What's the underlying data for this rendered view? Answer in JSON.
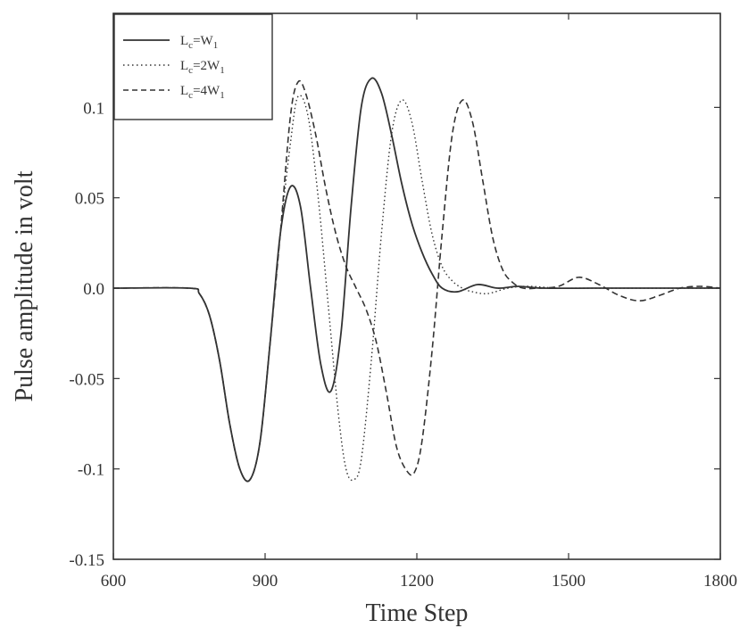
{
  "chart_data": {
    "type": "line",
    "title": "",
    "xlabel": "Time Step",
    "ylabel": "Pulse amplitude in volt",
    "xlim": [
      600,
      1800
    ],
    "ylim": [
      -0.15,
      0.15
    ],
    "x_ticks": [
      600,
      900,
      1200,
      1500,
      1800
    ],
    "x_tick_labels": [
      "600",
      "900",
      "1200",
      "1500",
      "1800"
    ],
    "y_ticks": [
      0.1,
      0.05,
      0.0,
      -0.05,
      -0.1,
      -0.15
    ],
    "y_tick_labels": [
      "0.1",
      "0.05",
      "0.0",
      "-0.05",
      "-0.1",
      "-0.15"
    ],
    "grid": false,
    "legend_position": "top-left",
    "series": [
      {
        "name": "Lc=W1",
        "legend_main": "L",
        "legend_sub1": "c",
        "legend_mid": "=W",
        "legend_sub2": "1",
        "style": "solid",
        "x": [
          600,
          750,
          770,
          790,
          810,
          830,
          850,
          870,
          890,
          910,
          930,
          950,
          970,
          990,
          1010,
          1030,
          1050,
          1070,
          1090,
          1110,
          1130,
          1150,
          1170,
          1190,
          1210,
          1230,
          1250,
          1280,
          1320,
          1360,
          1400,
          1450,
          1550,
          1650,
          1800
        ],
        "y": [
          0.0,
          0.0,
          -0.003,
          -0.015,
          -0.04,
          -0.075,
          -0.1,
          -0.106,
          -0.085,
          -0.03,
          0.03,
          0.056,
          0.045,
          0.0,
          -0.042,
          -0.057,
          -0.025,
          0.045,
          0.1,
          0.116,
          0.108,
          0.085,
          0.058,
          0.036,
          0.02,
          0.008,
          0.0,
          -0.002,
          0.002,
          0.0,
          0.001,
          0.0,
          0.0,
          0.0,
          0.0
        ]
      },
      {
        "name": "Lc=2W1",
        "legend_main": "L",
        "legend_sub1": "c",
        "legend_mid": "=2W",
        "legend_sub2": "1",
        "style": "dotted",
        "x": [
          600,
          750,
          770,
          790,
          810,
          830,
          850,
          870,
          890,
          910,
          930,
          950,
          965,
          985,
          1005,
          1025,
          1045,
          1060,
          1075,
          1090,
          1110,
          1130,
          1150,
          1170,
          1190,
          1210,
          1230,
          1250,
          1270,
          1290,
          1310,
          1340,
          1380,
          1420,
          1480,
          1550,
          1800
        ],
        "y": [
          0.0,
          0.0,
          -0.003,
          -0.015,
          -0.04,
          -0.075,
          -0.1,
          -0.106,
          -0.085,
          -0.03,
          0.03,
          0.08,
          0.106,
          0.095,
          0.05,
          -0.01,
          -0.07,
          -0.1,
          -0.106,
          -0.095,
          -0.04,
          0.03,
          0.085,
          0.104,
          0.092,
          0.06,
          0.03,
          0.012,
          0.004,
          0.0,
          -0.002,
          -0.003,
          0.0,
          0.001,
          0.0,
          0.0,
          0.0
        ]
      },
      {
        "name": "Lc=4W1",
        "legend_main": "L",
        "legend_sub1": "c",
        "legend_mid": "=4W",
        "legend_sub2": "1",
        "style": "dashed",
        "x": [
          600,
          750,
          770,
          790,
          810,
          830,
          850,
          870,
          890,
          910,
          930,
          950,
          965,
          980,
          1000,
          1020,
          1040,
          1060,
          1080,
          1100,
          1120,
          1140,
          1160,
          1180,
          1195,
          1210,
          1230,
          1250,
          1270,
          1290,
          1310,
          1330,
          1350,
          1370,
          1390,
          1410,
          1440,
          1480,
          1520,
          1560,
          1600,
          1640,
          1680,
          1720,
          1760,
          1800
        ],
        "y": [
          0.0,
          0.0,
          -0.003,
          -0.015,
          -0.04,
          -0.075,
          -0.1,
          -0.106,
          -0.085,
          -0.03,
          0.03,
          0.095,
          0.114,
          0.108,
          0.085,
          0.055,
          0.03,
          0.012,
          0.0,
          -0.012,
          -0.03,
          -0.058,
          -0.088,
          -0.101,
          -0.102,
          -0.085,
          -0.035,
          0.03,
          0.085,
          0.104,
          0.092,
          0.06,
          0.028,
          0.01,
          0.003,
          0.0,
          0.0,
          0.001,
          0.006,
          0.002,
          -0.004,
          -0.007,
          -0.004,
          0.0,
          0.001,
          0.0
        ]
      }
    ]
  }
}
